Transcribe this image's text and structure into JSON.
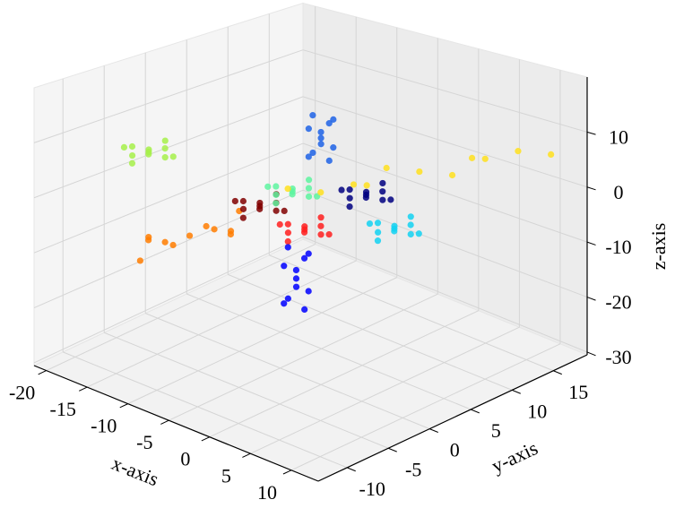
{
  "chart_data": {
    "type": "scatter3d",
    "x_label": "x-axis",
    "y_label": "y-axis",
    "z_label": "z-axis",
    "xlim": [
      -21.5,
      13.3
    ],
    "ylim": [
      -13.5,
      19.1
    ],
    "zlim": [
      -30.5,
      20
    ],
    "xticks": [
      -20,
      -15,
      -10,
      -5,
      0,
      5,
      10
    ],
    "yticks": [
      -10,
      -5,
      0,
      5,
      10,
      15
    ],
    "zticks": [
      -30,
      -20,
      -10,
      0,
      10
    ],
    "grid": true,
    "series": [
      {
        "color": "#a6f04a",
        "x": [
          -11,
          -10,
          -12,
          -9.5,
          -12.5,
          -10.5,
          -11.5,
          -9,
          -13,
          -11,
          -11
        ],
        "y": [
          -10,
          -11,
          -9,
          -9.5,
          -10.5,
          -8.5,
          -11.5,
          -9,
          -11,
          -8,
          -12
        ],
        "z": [
          11,
          11.5,
          10.5,
          12,
          10,
          9.5,
          12.5,
          10.5,
          11.5,
          12,
          10
        ]
      },
      {
        "color": "#ff7c00",
        "x": [
          -8,
          -7,
          -9,
          -6.5,
          -9.5,
          -7.5,
          -8.5,
          -6,
          -10,
          -8,
          -8
        ],
        "y": [
          -8,
          -11,
          -5,
          -6.5,
          -9.5,
          -3.5,
          -12.5,
          -5,
          -11,
          -2,
          -14
        ],
        "z": [
          -3.5,
          -3,
          -4,
          -2.5,
          -4.5,
          -5,
          -2,
          -4,
          -3,
          -2.5,
          -4.5
        ]
      },
      {
        "color": "#800000",
        "x": [
          -7.5,
          -6.5,
          -8.5,
          -6,
          -9,
          -7,
          -8,
          -5.5,
          -9.5,
          -7.5,
          -7.5
        ],
        "y": [
          0,
          -1,
          1,
          0.5,
          -0.5,
          1.5,
          -1.5,
          1,
          -1,
          2,
          -2
        ],
        "z": [
          -2.5,
          -2,
          -3,
          -1.5,
          -3.5,
          -4,
          -1,
          -3,
          -2,
          -1.5,
          -3.5
        ]
      },
      {
        "color": "#5ef5a0",
        "x": [
          -3.5,
          -2.5,
          -4.5,
          -2,
          -5,
          -3,
          -4,
          -1.5,
          -5.5,
          -3.5,
          -3.5
        ],
        "y": [
          0,
          -1,
          1,
          0.5,
          -0.5,
          1.5,
          -1.5,
          1,
          -1,
          2,
          -2
        ],
        "z": [
          2,
          2.5,
          1.5,
          3,
          1,
          0.5,
          3.5,
          1.5,
          2.5,
          3,
          1
        ]
      },
      {
        "color": "#ff1e1e",
        "x": [
          0,
          1,
          -1,
          1.5,
          -1.5,
          0.5,
          -0.5,
          2,
          -2,
          0,
          0
        ],
        "y": [
          -2,
          -3,
          -1,
          -1.5,
          -2.5,
          -0.5,
          -3.5,
          -1,
          -3,
          0,
          -4
        ],
        "z": [
          -2,
          -1.5,
          -2.5,
          -1,
          -3,
          -3.5,
          -0.5,
          -2.5,
          -1.5,
          -1,
          -3
        ]
      },
      {
        "color": "#0000ff",
        "x": [
          0,
          0.5,
          -0.5,
          1,
          -1,
          0,
          0,
          1,
          -1,
          0.5,
          -0.5
        ],
        "y": [
          -3,
          -3.5,
          -2.5,
          -3,
          -3,
          -2,
          -4,
          -2.5,
          -3.5,
          -2,
          -4
        ],
        "z": [
          -10,
          -8,
          -12,
          -6,
          -14,
          -16,
          -4,
          -12,
          -8,
          -6,
          -14
        ]
      },
      {
        "color": "#1f63e6",
        "x": [
          0,
          0.5,
          -0.5,
          1,
          -1,
          0,
          0,
          1,
          -1,
          0.5,
          -0.5
        ],
        "y": [
          0,
          -0.5,
          0.5,
          0,
          0,
          1,
          -1,
          0.5,
          -0.5,
          1,
          -1
        ],
        "z": [
          13,
          14.5,
          11.5,
          16,
          10,
          8.5,
          17.5,
          11.5,
          14.5,
          16,
          10
        ]
      },
      {
        "color": "#000080",
        "x": [
          2.5,
          3.5,
          1.5,
          4,
          1,
          3,
          2,
          4.5,
          0.5,
          2.5,
          2.5
        ],
        "y": [
          3,
          2,
          4,
          3.5,
          2.5,
          4.5,
          1.5,
          4,
          2,
          5,
          1
        ],
        "z": [
          2.5,
          3,
          2,
          3.5,
          1.5,
          1,
          4,
          2,
          3,
          3.5,
          1.5
        ]
      },
      {
        "color": "#ffe01e",
        "x": [
          7,
          9.5,
          4.5,
          10.75,
          3.25,
          8.25,
          5.75,
          12,
          2,
          9,
          5
        ],
        "y": [
          5,
          10.5,
          -0.5,
          13.25,
          -3.25,
          7.75,
          2.25,
          16,
          -6,
          9.4,
          0.6
        ],
        "z": [
          7.5,
          8,
          7,
          8.5,
          6.5,
          6,
          9,
          7,
          8,
          8.5,
          6.5
        ]
      },
      {
        "color": "#13d2f2",
        "x": [
          11,
          12,
          10,
          12.5,
          9.5,
          11.5,
          10.5,
          13,
          9,
          11,
          11
        ],
        "y": [
          -2,
          -3,
          -1,
          -1.5,
          -2.5,
          -0.5,
          -3.5,
          -1,
          -3,
          0,
          -4
        ],
        "z": [
          3,
          3.5,
          2.5,
          4,
          2,
          1.5,
          4.5,
          2.5,
          3.5,
          4,
          2
        ]
      }
    ]
  }
}
